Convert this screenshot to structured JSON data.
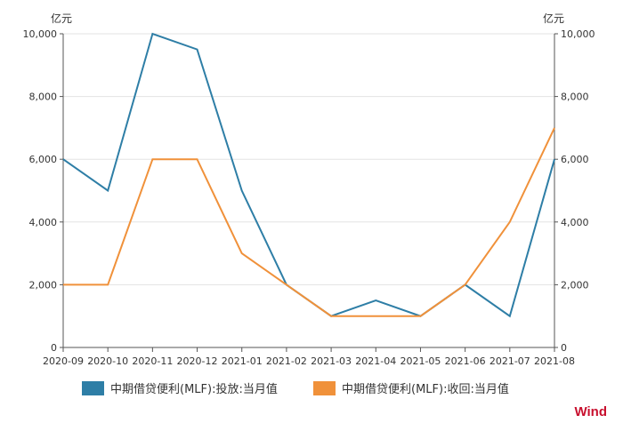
{
  "chart_data": {
    "type": "line",
    "left_unit": "亿元",
    "right_unit": "亿元",
    "categories": [
      "2020-09",
      "2020-10",
      "2020-11",
      "2020-12",
      "2021-01",
      "2021-02",
      "2021-03",
      "2021-04",
      "2021-05",
      "2021-06",
      "2021-07",
      "2021-08"
    ],
    "y_ticks": [
      0,
      2000,
      4000,
      6000,
      8000,
      10000
    ],
    "y_tick_labels": [
      "0",
      "2,000",
      "4,000",
      "6,000",
      "8,000",
      "10,000"
    ],
    "ylim": [
      0,
      10000
    ],
    "grid": true,
    "legend_position": "bottom",
    "series": [
      {
        "name": "中期借贷便利(MLF):投放:当月值",
        "color": "#2e7ea6",
        "values": [
          6000,
          5000,
          10000,
          9500,
          5000,
          2000,
          1000,
          1500,
          1000,
          2000,
          1000,
          6000
        ]
      },
      {
        "name": "中期借贷便利(MLF):收回:当月值",
        "color": "#f0913a",
        "values": [
          2000,
          2000,
          6000,
          6000,
          3000,
          2000,
          1000,
          1000,
          1000,
          2000,
          4000,
          7000
        ]
      }
    ]
  },
  "watermark": "Wind"
}
